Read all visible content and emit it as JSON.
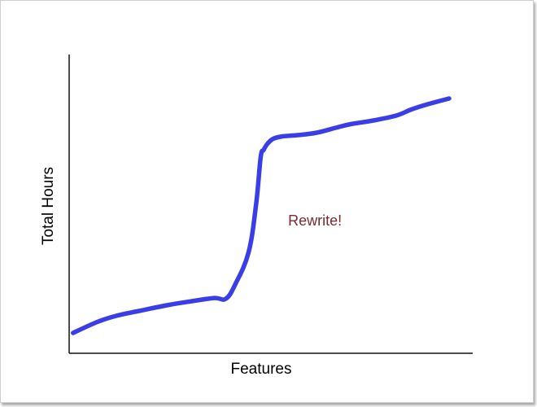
{
  "chart_data": {
    "type": "line",
    "title": "",
    "xlabel": "Features",
    "ylabel": "Total Hours",
    "xlim": [
      0,
      100
    ],
    "ylim": [
      0,
      100
    ],
    "grid": false,
    "series": [
      {
        "color": "#3a3ee6",
        "x": [
          0.6,
          7,
          12,
          18,
          26,
          32,
          38,
          41,
          43.5,
          47,
          49,
          50.2,
          51,
          52,
          53.5,
          56,
          60,
          65,
          70,
          74,
          80,
          86,
          90,
          94,
          100
        ],
        "y": [
          4,
          8.5,
          11,
          13,
          15.5,
          17,
          18.3,
          18,
          24,
          37,
          57,
          76,
          79,
          81.5,
          83.5,
          84.5,
          85,
          86,
          88,
          89.5,
          91,
          93,
          95.5,
          97.5,
          100
        ]
      }
    ],
    "annotations": [
      {
        "text": "Rewrite!",
        "x": 51,
        "y": 50,
        "color": "#7a2a30"
      }
    ]
  }
}
